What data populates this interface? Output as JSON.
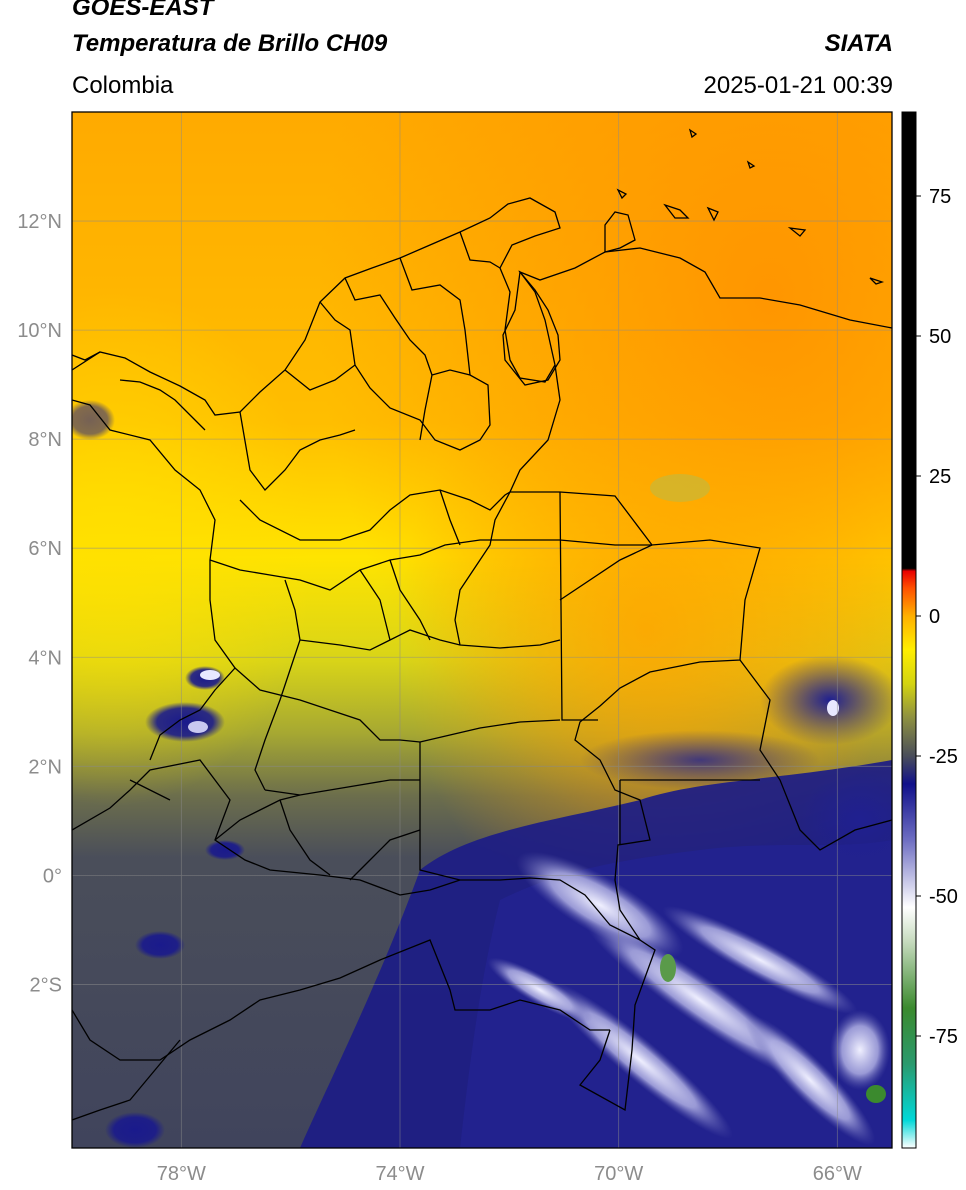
{
  "header": {
    "line1": "GOES-EAST",
    "line2": "Temperatura de Brillo CH09",
    "brand": "SIATA",
    "region": "Colombia",
    "datetime": "2025-01-21 00:39"
  },
  "map": {
    "lon_range": [
      -80,
      -65
    ],
    "lat_range": [
      -5,
      14
    ],
    "lon_ticks": [
      {
        "value": -78,
        "label": "78°W"
      },
      {
        "value": -74,
        "label": "74°W"
      },
      {
        "value": -70,
        "label": "70°W"
      },
      {
        "value": -66,
        "label": "66°W"
      }
    ],
    "lat_ticks": [
      {
        "value": 12,
        "label": "12°N"
      },
      {
        "value": 10,
        "label": "10°N"
      },
      {
        "value": 8,
        "label": "8°N"
      },
      {
        "value": 6,
        "label": "6°N"
      },
      {
        "value": 4,
        "label": "4°N"
      },
      {
        "value": 2,
        "label": "2°N"
      },
      {
        "value": 0,
        "label": "0°"
      },
      {
        "value": -2,
        "label": "2°S"
      }
    ]
  },
  "colorbar": {
    "range": [
      -95,
      90
    ],
    "ticks": [
      {
        "value": 75,
        "label": "75"
      },
      {
        "value": 50,
        "label": "50"
      },
      {
        "value": 25,
        "label": "25"
      },
      {
        "value": 0,
        "label": "0"
      },
      {
        "value": -25,
        "label": "-25"
      },
      {
        "value": -50,
        "label": "-50"
      },
      {
        "value": -75,
        "label": "-75"
      }
    ],
    "stops": [
      {
        "value": -95,
        "color": "#ffffff"
      },
      {
        "value": -90,
        "color": "#00d8d8"
      },
      {
        "value": -80,
        "color": "#2a9a6e"
      },
      {
        "value": -70,
        "color": "#3b8a2e"
      },
      {
        "value": -58,
        "color": "#c8dcc0"
      },
      {
        "value": -52,
        "color": "#ffffff"
      },
      {
        "value": -40,
        "color": "#6e6ec2"
      },
      {
        "value": -30,
        "color": "#10108a"
      },
      {
        "value": -25,
        "color": "#4a4e5a"
      },
      {
        "value": -18,
        "color": "#8f9240"
      },
      {
        "value": -12,
        "color": "#d4d410"
      },
      {
        "value": -6,
        "color": "#ffee00"
      },
      {
        "value": 0,
        "color": "#ffb000"
      },
      {
        "value": 5,
        "color": "#ff5000"
      },
      {
        "value": 8,
        "color": "#e80000"
      },
      {
        "value": 8.5,
        "color": "#000000"
      },
      {
        "value": 90,
        "color": "#000000"
      }
    ]
  }
}
